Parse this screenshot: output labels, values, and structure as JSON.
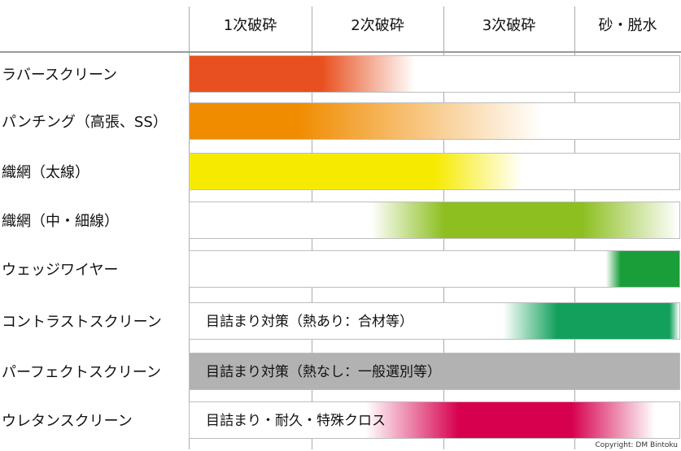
{
  "chart_data": {
    "type": "gantt-gradient",
    "stages": [
      "1次破砕",
      "2次破砕",
      "3次破砕",
      "砂・脱水"
    ],
    "rows": [
      {
        "label": "ラバースクリーン",
        "color": "#e8501f",
        "start": 0.0,
        "solid_end": 0.27,
        "fade_end": 0.46,
        "note": ""
      },
      {
        "label": "パンチング（高張、SS）",
        "color": "#f08c00",
        "start": 0.0,
        "solid_end": 0.22,
        "fade_end": 0.72,
        "note": ""
      },
      {
        "label": "織網（太線）",
        "color": "#f6ea00",
        "start": 0.0,
        "solid_end": 0.5,
        "fade_end": 0.68,
        "note": ""
      },
      {
        "label": "織網（中・細線）",
        "color": "#8cbf1f",
        "fade_start": 0.37,
        "start": 0.52,
        "solid_end": 0.8,
        "fade_end": 1.0,
        "note": ""
      },
      {
        "label": "ウェッジワイヤー",
        "color": "#1a9e3a",
        "fade_start": 0.85,
        "start": 0.88,
        "solid_end": 1.0,
        "fade_end": 1.0,
        "note": ""
      },
      {
        "label": "コントラストスクリーン",
        "color": "#13a05c",
        "fade_start": 0.64,
        "start": 0.75,
        "solid_end": 0.98,
        "fade_end": 1.0,
        "note": "目詰まり対策（熱あり：合材等）"
      },
      {
        "label": "パーフェクトスクリーン",
        "color": "#b2b2b2",
        "start": 0.0,
        "solid_end": 1.0,
        "fade_end": 1.0,
        "note": "目詰まり対策（熱なし：一般選別等）"
      },
      {
        "label": "ウレタンスクリーン",
        "color": "#d7004f",
        "fade_start": 0.36,
        "start": 0.55,
        "solid_end": 0.78,
        "fade_end": 0.95,
        "note": "目詰まり・耐久・特殊クロス"
      }
    ]
  },
  "copyright": "Copyright: DM Bintoku"
}
